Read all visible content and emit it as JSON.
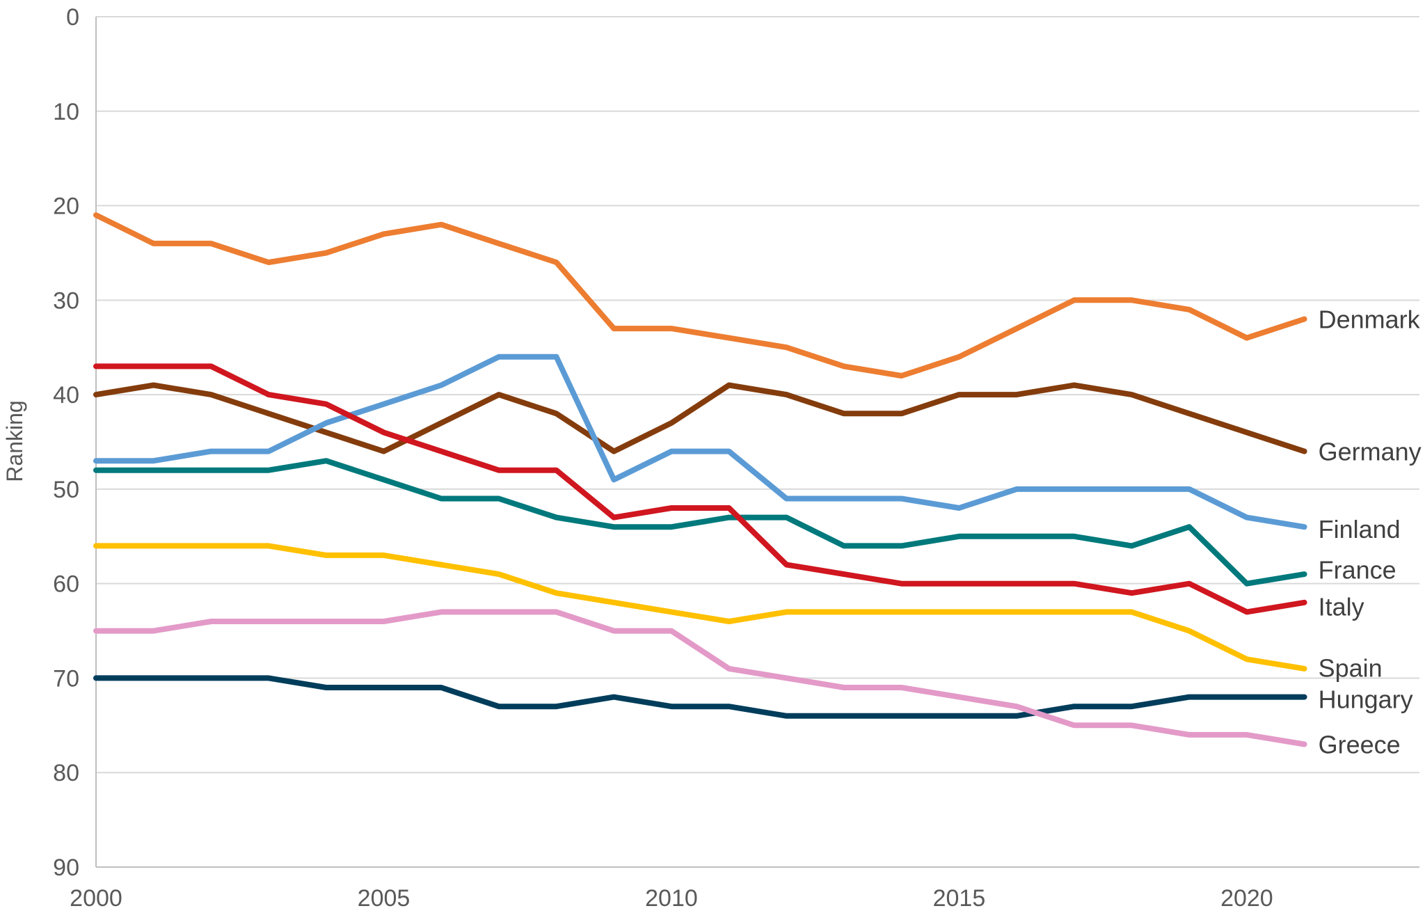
{
  "chart_data": {
    "type": "line",
    "title": "",
    "xlabel": "",
    "ylabel": "Ranking",
    "xlim": [
      2000,
      2023
    ],
    "ylim": [
      0,
      90
    ],
    "y_inverted": true,
    "grid": true,
    "legend": "end-of-line labels",
    "x_ticks": [
      "2000",
      "2005",
      "2010",
      "2015",
      "2020"
    ],
    "y_ticks": [
      "0",
      "10",
      "20",
      "30",
      "40",
      "50",
      "60",
      "70",
      "80",
      "90"
    ],
    "x": [
      2000,
      2001,
      2002,
      2003,
      2004,
      2005,
      2006,
      2007,
      2008,
      2009,
      2010,
      2011,
      2012,
      2013,
      2014,
      2015,
      2016,
      2017,
      2018,
      2019,
      2020,
      2021
    ],
    "series": [
      {
        "name": "Denmark",
        "color": "#ED7D31",
        "values": [
          21,
          24,
          24,
          26,
          25,
          23,
          22,
          24,
          26,
          33,
          33,
          34,
          35,
          37,
          38,
          36,
          33,
          30,
          30,
          31,
          34,
          32
        ]
      },
      {
        "name": "Germany",
        "color": "#843C0C",
        "values": [
          40,
          39,
          40,
          42,
          44,
          46,
          43,
          40,
          42,
          46,
          43,
          39,
          40,
          42,
          42,
          40,
          40,
          39,
          40,
          42,
          44,
          46
        ]
      },
      {
        "name": "Finland",
        "color": "#5B9BD5",
        "values": [
          47,
          47,
          46,
          46,
          43,
          41,
          39,
          36,
          36,
          49,
          46,
          46,
          51,
          51,
          51,
          52,
          50,
          50,
          50,
          50,
          53,
          54
        ]
      },
      {
        "name": "France",
        "color": "#00797C",
        "values": [
          48,
          48,
          48,
          48,
          47,
          49,
          51,
          51,
          53,
          54,
          54,
          53,
          53,
          56,
          56,
          55,
          55,
          55,
          56,
          54,
          60,
          59
        ]
      },
      {
        "name": "Italy",
        "color": "#D0161F",
        "values": [
          37,
          37,
          37,
          40,
          41,
          44,
          46,
          48,
          48,
          53,
          52,
          52,
          58,
          59,
          60,
          60,
          60,
          60,
          61,
          60,
          63,
          62
        ]
      },
      {
        "name": "Spain",
        "color": "#FFC000",
        "values": [
          56,
          56,
          56,
          56,
          57,
          57,
          58,
          59,
          61,
          62,
          63,
          64,
          63,
          63,
          63,
          63,
          63,
          63,
          63,
          65,
          68,
          69
        ]
      },
      {
        "name": "Hungary",
        "color": "#003D5B",
        "values": [
          70,
          70,
          70,
          70,
          71,
          71,
          71,
          73,
          73,
          72,
          73,
          73,
          74,
          74,
          74,
          74,
          74,
          73,
          73,
          72,
          72,
          72
        ]
      },
      {
        "name": "Greece",
        "color": "#E39AC8",
        "values": [
          65,
          65,
          64,
          64,
          64,
          64,
          63,
          63,
          63,
          65,
          65,
          69,
          70,
          71,
          71,
          72,
          73,
          75,
          75,
          76,
          76,
          77
        ]
      }
    ],
    "labels": [
      {
        "series": "Denmark",
        "text": "Denmark",
        "at_value": 32
      },
      {
        "series": "Germany",
        "text": "Germany",
        "at_value": 46
      },
      {
        "series": "Finland",
        "text": "Finland",
        "at_value": 54.2
      },
      {
        "series": "France",
        "text": "France",
        "at_value": 58.5
      },
      {
        "series": "Italy",
        "text": "Italy",
        "at_value": 62.4
      },
      {
        "series": "Spain",
        "text": "Spain",
        "at_value": 68.9
      },
      {
        "series": "Hungary",
        "text": "Hungary",
        "at_value": 72.2
      },
      {
        "series": "Greece",
        "text": "Greece",
        "at_value": 77
      }
    ]
  }
}
